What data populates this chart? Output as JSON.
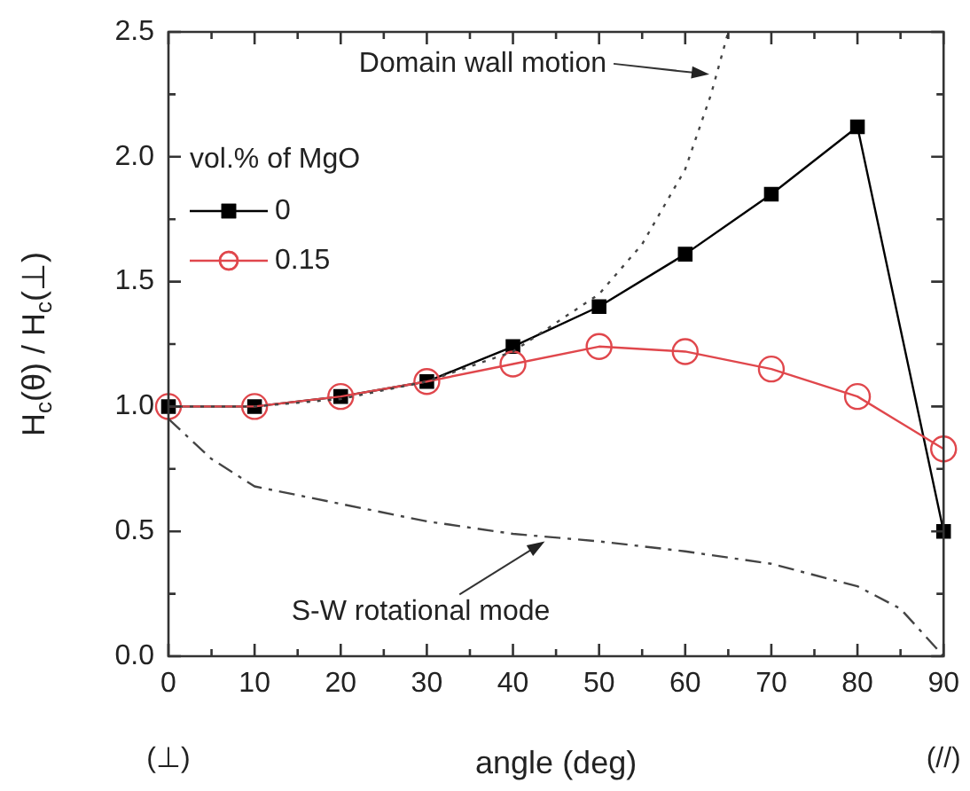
{
  "chart_data": {
    "type": "line",
    "xlabel": "angle (deg)",
    "ylabel": "H$_{c}$(θ) / H$_{c}$(⊥)",
    "legend_title": "vol.% of MgO",
    "legend": "top left",
    "xlim": [
      0,
      90
    ],
    "xticks": [
      0,
      {
        "value": 5,
        "label": null
      },
      10,
      {
        "value": 15,
        "label": null
      },
      20,
      {
        "value": 25,
        "label": null
      },
      30,
      {
        "value": 35,
        "label": null
      },
      40,
      {
        "value": 45,
        "label": null
      },
      50,
      {
        "value": 55,
        "label": null
      },
      60,
      {
        "value": 65,
        "label": null
      },
      70,
      {
        "value": 75,
        "label": null
      },
      80,
      {
        "value": 85,
        "label": null
      },
      90
    ],
    "ylim": [
      0,
      2.5
    ],
    "yticks": [
      {
        "value": 0,
        "label": "0.0"
      },
      {
        "value": 0.25,
        "label": null
      },
      {
        "value": 0.5,
        "label": "0.5"
      },
      {
        "value": 0.75,
        "label": null
      },
      {
        "value": 1,
        "label": "1.0"
      },
      {
        "value": 1.25,
        "label": null
      },
      {
        "value": 1.5,
        "label": "1.5"
      },
      {
        "value": 1.75,
        "label": null
      },
      {
        "value": 2,
        "label": "2.0"
      },
      {
        "value": 2.25,
        "label": null
      },
      {
        "value": 2.5,
        "label": "2.5"
      }
    ],
    "series": [
      {
        "name": "0",
        "color": "#000000",
        "marker": "square",
        "line_style": "solid",
        "x": [
          0,
          10,
          20,
          30,
          40,
          50,
          60,
          70,
          80,
          90
        ],
        "values": [
          1.0,
          1.0,
          1.04,
          1.1,
          1.24,
          1.4,
          1.61,
          1.85,
          2.12,
          0.5
        ]
      },
      {
        "name": "0.15",
        "color": "#e0474c",
        "marker": "circle",
        "line_style": "solid",
        "x": [
          0,
          10,
          20,
          30,
          40,
          50,
          60,
          70,
          80,
          90
        ],
        "values": [
          1.0,
          1.0,
          1.04,
          1.1,
          1.17,
          1.24,
          1.22,
          1.15,
          1.04,
          0.83
        ]
      },
      {
        "color": "#444444",
        "marker": "none",
        "line_style": "dotted",
        "x": [
          0,
          10,
          20,
          30,
          40,
          50,
          55,
          60,
          63,
          65
        ],
        "values": [
          1.0,
          1.0,
          1.03,
          1.1,
          1.22,
          1.45,
          1.65,
          1.95,
          2.25,
          2.5
        ]
      },
      {
        "color": "#444444",
        "marker": "none",
        "line_style": "dashdot",
        "x": [
          0,
          5,
          10,
          20,
          30,
          40,
          50,
          60,
          70,
          80,
          85,
          90
        ],
        "values": [
          0.95,
          0.79,
          0.68,
          0.61,
          0.54,
          0.49,
          0.46,
          0.42,
          0.37,
          0.28,
          0.19,
          0.0
        ]
      }
    ],
    "annotations": [
      {
        "text": "Domain wall motion",
        "x": 62.8,
        "y": 2.33
      },
      {
        "text": "S-W rotational mode",
        "x": 43.7,
        "y": 0.46
      },
      "(⊥)",
      "(//)"
    ]
  }
}
